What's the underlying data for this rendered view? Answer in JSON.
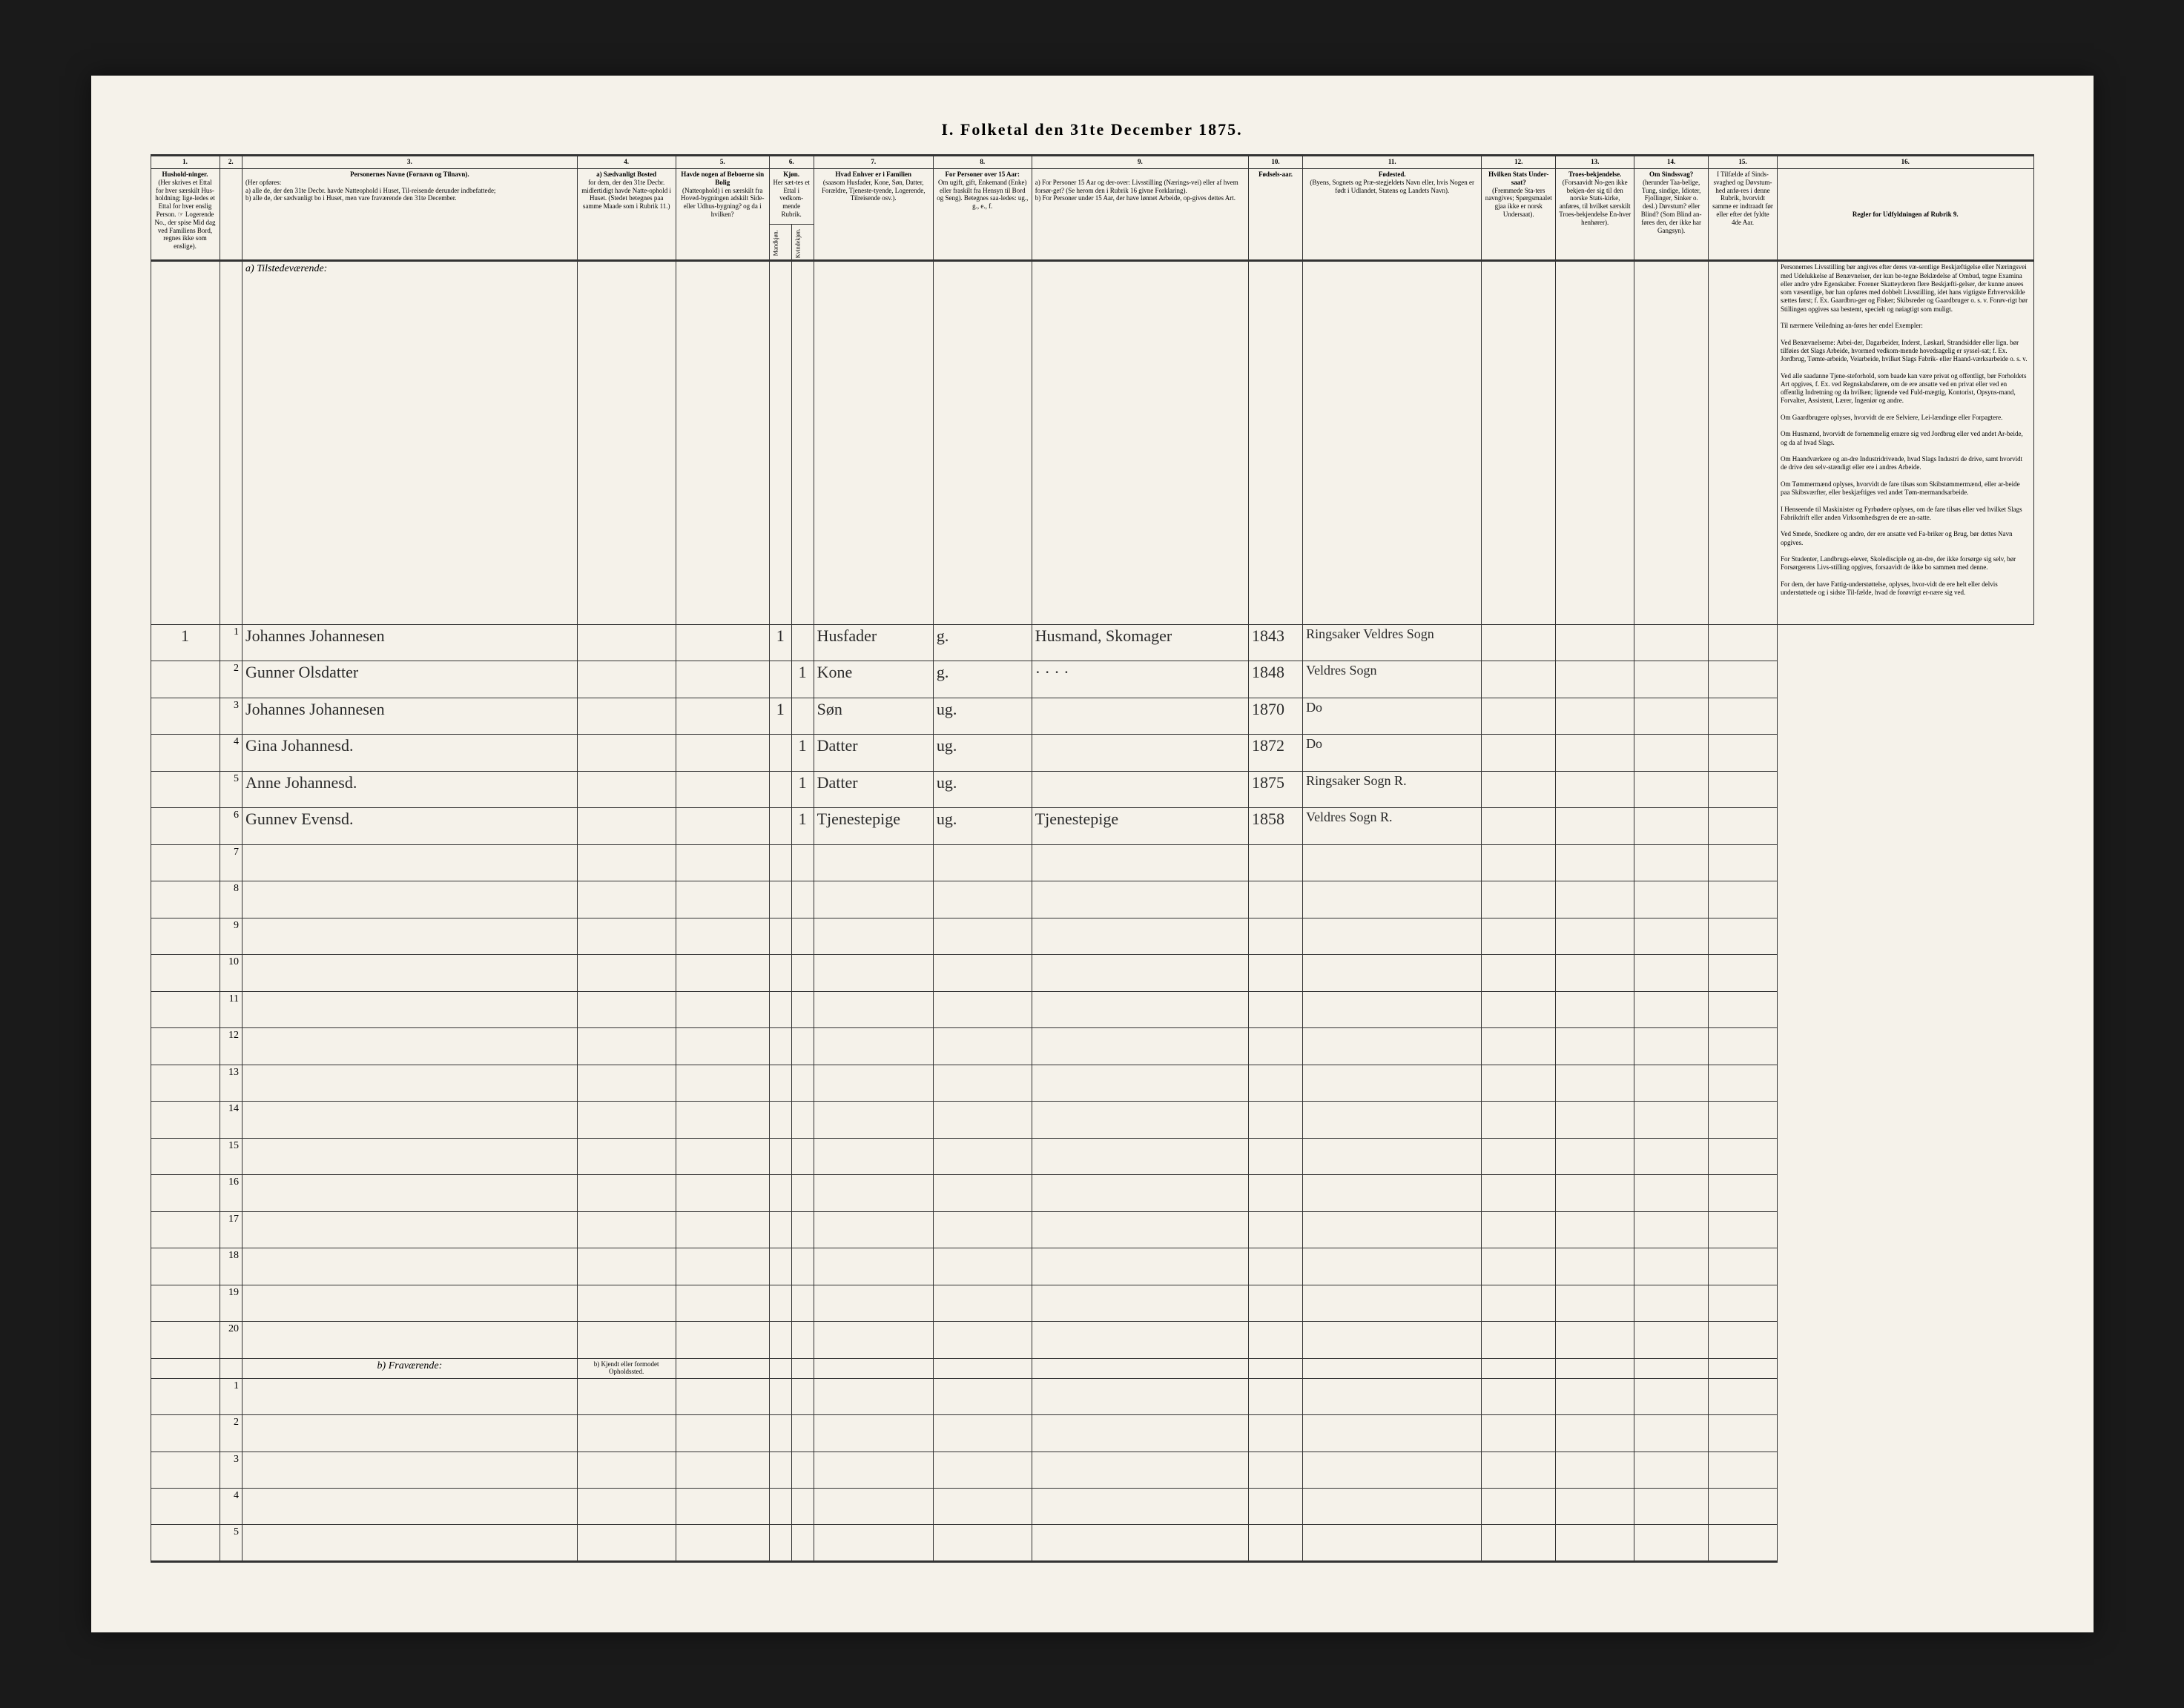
{
  "title": "I. Folketal den 31te December 1875.",
  "columns": {
    "c1": {
      "num": "1.",
      "label": "Hushold-ninger.",
      "sub": "(Her skrives et Ettal for hver særskilt Hus-holdning; lige-ledes et Ettal for hver enslig Person. ☞ Logerende No., der spise Mid dag ved Familiens Bord, regnes ikke som enslige)."
    },
    "c2": {
      "num": "2.",
      "label": ""
    },
    "c3": {
      "num": "3.",
      "label": "Personernes Navne (Fornavn og Tilnavn).",
      "sub": "(Her opføres:\na) alle de, der den 31te Decbr. havde Natteophold i Huset, Til-reisende derunder indbefattede;\nb) alle de, der sædvanligt bo i Huset, men vare fraværende den 31te December."
    },
    "c4": {
      "num": "4.",
      "label": "a) Sædvanligt Bosted",
      "sub": "for dem, der den 31te Decbr. midlertidigt havde Natte-ophold i Huset. (Stedet betegnes paa samme Maade som i Rubrik 11.)"
    },
    "c5": {
      "num": "5.",
      "label": "Havde nogen af Beboerne sin Bolig",
      "sub": "(Natteophold) i en særskilt fra Hoved-bygningen adskilt Side- eller Udhus-bygning? og da i hvilken?"
    },
    "c6": {
      "num": "6.",
      "label": "Kjøn.",
      "sub": "Her sæt-tes et Ettal i vedkom-mende Rubrik."
    },
    "c7": {
      "num": "7.",
      "label": "Hvad Enhver er i Familien",
      "sub": "(saasom Husfader, Kone, Søn, Datter, Forældre, Tjeneste-tyende, Logerende, Tilreisende osv.)."
    },
    "c8": {
      "num": "8.",
      "label": "For Personer over 15 Aar:",
      "sub": "Om ugift, gift, Enkemand (Enke) eller fraskilt fra Hensyn til Bord og Seng). Betegnes saa-ledes: ug., g., e., f."
    },
    "c9": {
      "num": "9.",
      "label": "",
      "sub": "a) For Personer 15 Aar og der-over: Livsstilling (Nærings-vei) eller af hvem forsør-get? (Se herom den i Rubrik 16 givne Forklaring).\nb) For Personer under 15 Aar, der have lønnet Arbeide, op-gives dettes Art."
    },
    "c10": {
      "num": "10.",
      "label": "Fødsels-aar."
    },
    "c11": {
      "num": "11.",
      "label": "Fødested.",
      "sub": "(Byens, Sognets og Præ-stegjeldets Navn eller, hvis Nogen er født i Udlandet, Statens og Landets Navn)."
    },
    "c12": {
      "num": "12.",
      "label": "Hvilken Stats Under-saat?",
      "sub": "(Fremmede Sta-ters navngives; Spørgsmaalet gjaa ikke er norsk Undersaat)."
    },
    "c13": {
      "num": "13.",
      "label": "Troes-bekjendelse.",
      "sub": "(Forsaavidt No-gen ikke bekjen-der sig til den norske Stats-kirke, anføres, til hvilket særskilt Troes-bekjendelse En-hver henhører)."
    },
    "c14": {
      "num": "14.",
      "label": "Om Sindssvag?",
      "sub": "(herunder Taa-belige, Tung, sindige, Idioter, Fjollinger, Sinker o. desl.) Døvstum? eller Blind? (Som Blind an-føres den, der ikke har Gangsyn)."
    },
    "c15": {
      "num": "15.",
      "label": "I Tilfælde af Sinds-svaghed og Døvstum-hed anfø-res i denne Rubrik, hvorvidt samme er indtraadt før eller efter det fyldte 4de Aar."
    },
    "c16": {
      "num": "16.",
      "label": "Regler for Udfyldningen af Rubrik 9."
    }
  },
  "kjon_sub": {
    "m": "Mandkjøn.",
    "k": "Kvindekjøn."
  },
  "section_a": "a) Tilstedeværende:",
  "section_b": "b) Fraværende:",
  "section_b4": "b) Kjendt eller formodet Opholdssted.",
  "rows": [
    {
      "n": "1",
      "hh": "1",
      "name": "Johannes Johannesen",
      "m": "1",
      "k": "",
      "fam": "Husfader",
      "civ": "g.",
      "occ": "Husmand, Skomager",
      "year": "1843",
      "place": "Ringsaker Veldres Sogn"
    },
    {
      "n": "2",
      "hh": "",
      "name": "Gunner Olsdatter",
      "m": "",
      "k": "1",
      "fam": "Kone",
      "civ": "g.",
      "occ": "· · · ·",
      "year": "1848",
      "place": "Veldres Sogn"
    },
    {
      "n": "3",
      "hh": "",
      "name": "Johannes Johannesen",
      "m": "1",
      "k": "",
      "fam": "Søn",
      "civ": "ug.",
      "occ": "",
      "year": "1870",
      "place": "Do",
      "ditto": true
    },
    {
      "n": "4",
      "hh": "",
      "name": "Gina Johannesd.",
      "m": "",
      "k": "1",
      "fam": "Datter",
      "civ": "ug.",
      "occ": "",
      "year": "1872",
      "place": "Do",
      "ditto": true
    },
    {
      "n": "5",
      "hh": "",
      "name": "Anne Johannesd.",
      "m": "",
      "k": "1",
      "fam": "Datter",
      "civ": "ug.",
      "occ": "",
      "year": "1875",
      "place": "Ringsaker Sogn R."
    },
    {
      "n": "6",
      "hh": "",
      "name": "Gunnev Evensd.",
      "m": "",
      "k": "1",
      "fam": "Tjenestepige",
      "civ": "ug.",
      "occ": "Tjenestepige",
      "year": "1858",
      "place": "Veldres Sogn R."
    }
  ],
  "empty_rows_a": [
    "7",
    "8",
    "9",
    "10",
    "11",
    "12",
    "13",
    "14",
    "15",
    "16",
    "17",
    "18",
    "19",
    "20"
  ],
  "empty_rows_b": [
    "1",
    "2",
    "3",
    "4",
    "5"
  ],
  "instructions_title": "Personernes Livsstilling",
  "instructions": "Personernes Livsstilling bør angives efter deres væ-sentlige Beskjæftigelse eller Næringsvei med Udelukkelse af Benævnelser, der kun be-tegne Beklædelse af Ombud, tegne Examina eller andre ydre Egenskaber. Forener Skatteyderen flere Beskjæfti-gelser, der kunne ansees som væsentlige, bør han opføres med dobbelt Livsstilling, idet hans vigtigste Erhvervskilde sættes først; f. Ex. Gaardbru-ger og Fisker; Skibsreder og Gaardbruger o. s. v. Forøv-rigt bør Stillingen opgives saa bestemt, specielt og nøiagtigt som muligt.\n\nTil nærmere Veiledning an-føres her endel Exempler:\n\nVed Benævnelserne: Arbei-der, Dagarbeider, Inderst, Løskarl, Strandsidder eller lign. bør tilføies det Slags Arbeide, hvormed vedkom-mende hovedsagelig er syssel-sat; f. Ex. Jordbrug, Tømte-arbeide, Veiarbeide, hvilket Slags Fabrik- eller Haand-værksarbeide o. s. v.\n\nVed alle saadanne Tjene-steforhold, som baade kan være privat og offentligt, bør Forholdets Art opgives, f. Ex. ved Regnskabsførere, om de ere ansatte ved en privat eller ved en offentlig Indretning og da hvilken; lignende ved Fuld-mægtig, Kontorist, Opsyns-mand, Forvalter, Assistent, Lærer, Ingeniør og andre.\n\nOm Gaardbrugere oplyses, hvorvidt de ere Selviere, Lei-lændinge eller Forpagtere.\n\nOm Husmænd, hvorvidt de fornemmelig ernære sig ved Jordbrug eller ved andet Ar-beide, og da af hvad Slags.\n\nOm Haandværkere og an-dre Industridrivende, hvad Slags Industri de drive, samt hvorvidt de drive den selv-stændigt eller ere i andres Arbeide.\n\nOm Tømmermænd oplyses, hvorvidt de fare tilsøs som Skibstømmermænd, eller ar-beide paa Skibsværfter, eller beskjæftiges ved andet Tøm-mermandsarbeide.\n\nI Henseende til Maskinister og Fyrbødere oplyses, om de fare tilsøs eller ved hvilket Slags Fabrikdrift eller anden Virksomhedsgren de ere an-satte.\n\nVed Smede, Snedkere og andre, der ere ansatte ved Fa-briker og Brug, bør dettes Navn opgives.\n\nFor Studenter, Landbrugs-elever, Skoledisciple og an-dre, der ikke forsørge sig selv, bør Forsørgerens Livs-stilling opgives, forsaavidt de ikke bo sammen med denne.\n\nFor dem, der have Fattig-understøttelse, oplyses, hvor-vidt de ere helt eller delvis understøttede og i sidste Til-fælde, hvad de forøvrigt er-nære sig ved."
}
